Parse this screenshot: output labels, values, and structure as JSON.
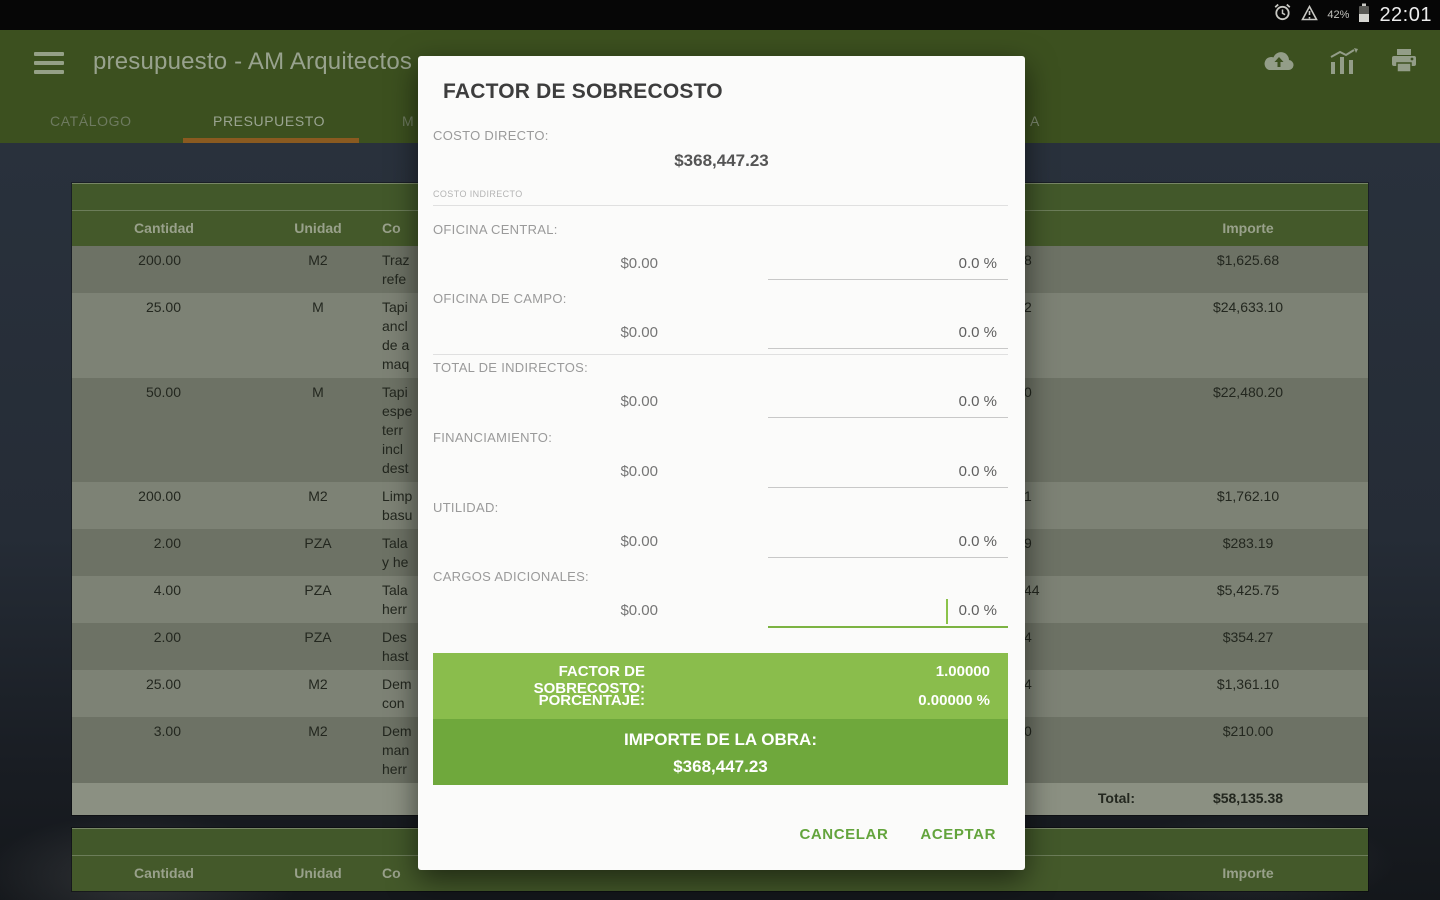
{
  "status_bar": {
    "time": "22:01",
    "battery_pct": "42%"
  },
  "app_bar": {
    "title": "presupuesto - AM Arquitectos"
  },
  "tabs": {
    "items": [
      {
        "label": "CATÁLOGO",
        "active": false
      },
      {
        "label": "PRESUPUESTO",
        "active": true
      },
      {
        "label": "M",
        "active": false,
        "partial": true
      },
      {
        "label": "A",
        "active": false,
        "partial": true
      }
    ]
  },
  "table": {
    "headers": {
      "cantidad": "Cantidad",
      "unidad": "Unidad",
      "concepto": "Co",
      "importe": "Importe"
    },
    "rows": [
      {
        "cantidad": "200.00",
        "unidad": "M2",
        "concepto_lines": [
          "Traz",
          "refe"
        ],
        "pu_partial": "8",
        "importe": "$1,625.68"
      },
      {
        "cantidad": "25.00",
        "unidad": "M",
        "concepto_lines": [
          "Tapi",
          "ancl",
          "de a",
          "maq"
        ],
        "pu_partial": "2",
        "importe": "$24,633.10"
      },
      {
        "cantidad": "50.00",
        "unidad": "M",
        "concepto_lines": [
          "Tapi",
          "espe",
          "terr",
          "incl",
          "dest"
        ],
        "pu_partial": "0",
        "importe": "$22,480.20"
      },
      {
        "cantidad": "200.00",
        "unidad": "M2",
        "concepto_lines": [
          "Limp",
          "basu"
        ],
        "pu_partial": "1",
        "importe": "$1,762.10"
      },
      {
        "cantidad": "2.00",
        "unidad": "PZA",
        "concepto_lines": [
          "Tala",
          "y he"
        ],
        "pu_partial": "9",
        "importe": "$283.19"
      },
      {
        "cantidad": "4.00",
        "unidad": "PZA",
        "concepto_lines": [
          "Tala",
          "herr"
        ],
        "pu_partial": "44",
        "importe": "$5,425.75"
      },
      {
        "cantidad": "2.00",
        "unidad": "PZA",
        "concepto_lines": [
          "Des",
          "hast"
        ],
        "pu_partial": "4",
        "importe": "$354.27"
      },
      {
        "cantidad": "25.00",
        "unidad": "M2",
        "concepto_lines": [
          "Dem",
          "con"
        ],
        "pu_partial": "4",
        "importe": "$1,361.10"
      },
      {
        "cantidad": "3.00",
        "unidad": "M2",
        "concepto_lines": [
          "Dem",
          "man",
          "herr"
        ],
        "pu_partial": "0",
        "importe": "$210.00"
      }
    ],
    "total_label": "Total:",
    "total_value": "$58,135.38"
  },
  "dialog": {
    "title": "FACTOR DE SOBRECOSTO",
    "costo_directo_label": "COSTO DIRECTO:",
    "costo_directo_value": "$368,447.23",
    "section_label": "COSTO INDIRECTO",
    "fields": [
      {
        "label": "OFICINA CENTRAL:",
        "amount": "$0.00",
        "percent": "0.0 %",
        "focused": false,
        "divider_above": false
      },
      {
        "label": "OFICINA DE CAMPO:",
        "amount": "$0.00",
        "percent": "0.0 %",
        "focused": false,
        "divider_above": false
      },
      {
        "label": "TOTAL DE INDIRECTOS:",
        "amount": "$0.00",
        "percent": "0.0 %",
        "focused": false,
        "divider_above": true
      },
      {
        "label": "FINANCIAMIENTO:",
        "amount": "$0.00",
        "percent": "0.0 %",
        "focused": false,
        "divider_above": false
      },
      {
        "label": "UTILIDAD:",
        "amount": "$0.00",
        "percent": "0.0 %",
        "focused": false,
        "divider_above": false
      },
      {
        "label": "CARGOS ADICIONALES:",
        "amount": "$0.00",
        "percent": "0.0 %",
        "focused": true,
        "divider_above": false
      }
    ],
    "summary": {
      "factor_label": "FACTOR DE SOBRECOSTO:",
      "factor_value": "1.00000",
      "porcentaje_label": "PORCENTAJE:",
      "porcentaje_value": "0.00000 %",
      "importe_label": "IMPORTE DE LA OBRA:",
      "importe_value": "$368,447.23"
    },
    "buttons": {
      "cancel": "CANCELAR",
      "accept": "ACEPTAR"
    }
  },
  "colors": {
    "accent_green": "#7CB342",
    "summary_top": "#8abd4c",
    "summary_bottom": "#6fa83c",
    "appbar_green": "#3c501f",
    "tab_indicator": "#8a5a20"
  }
}
